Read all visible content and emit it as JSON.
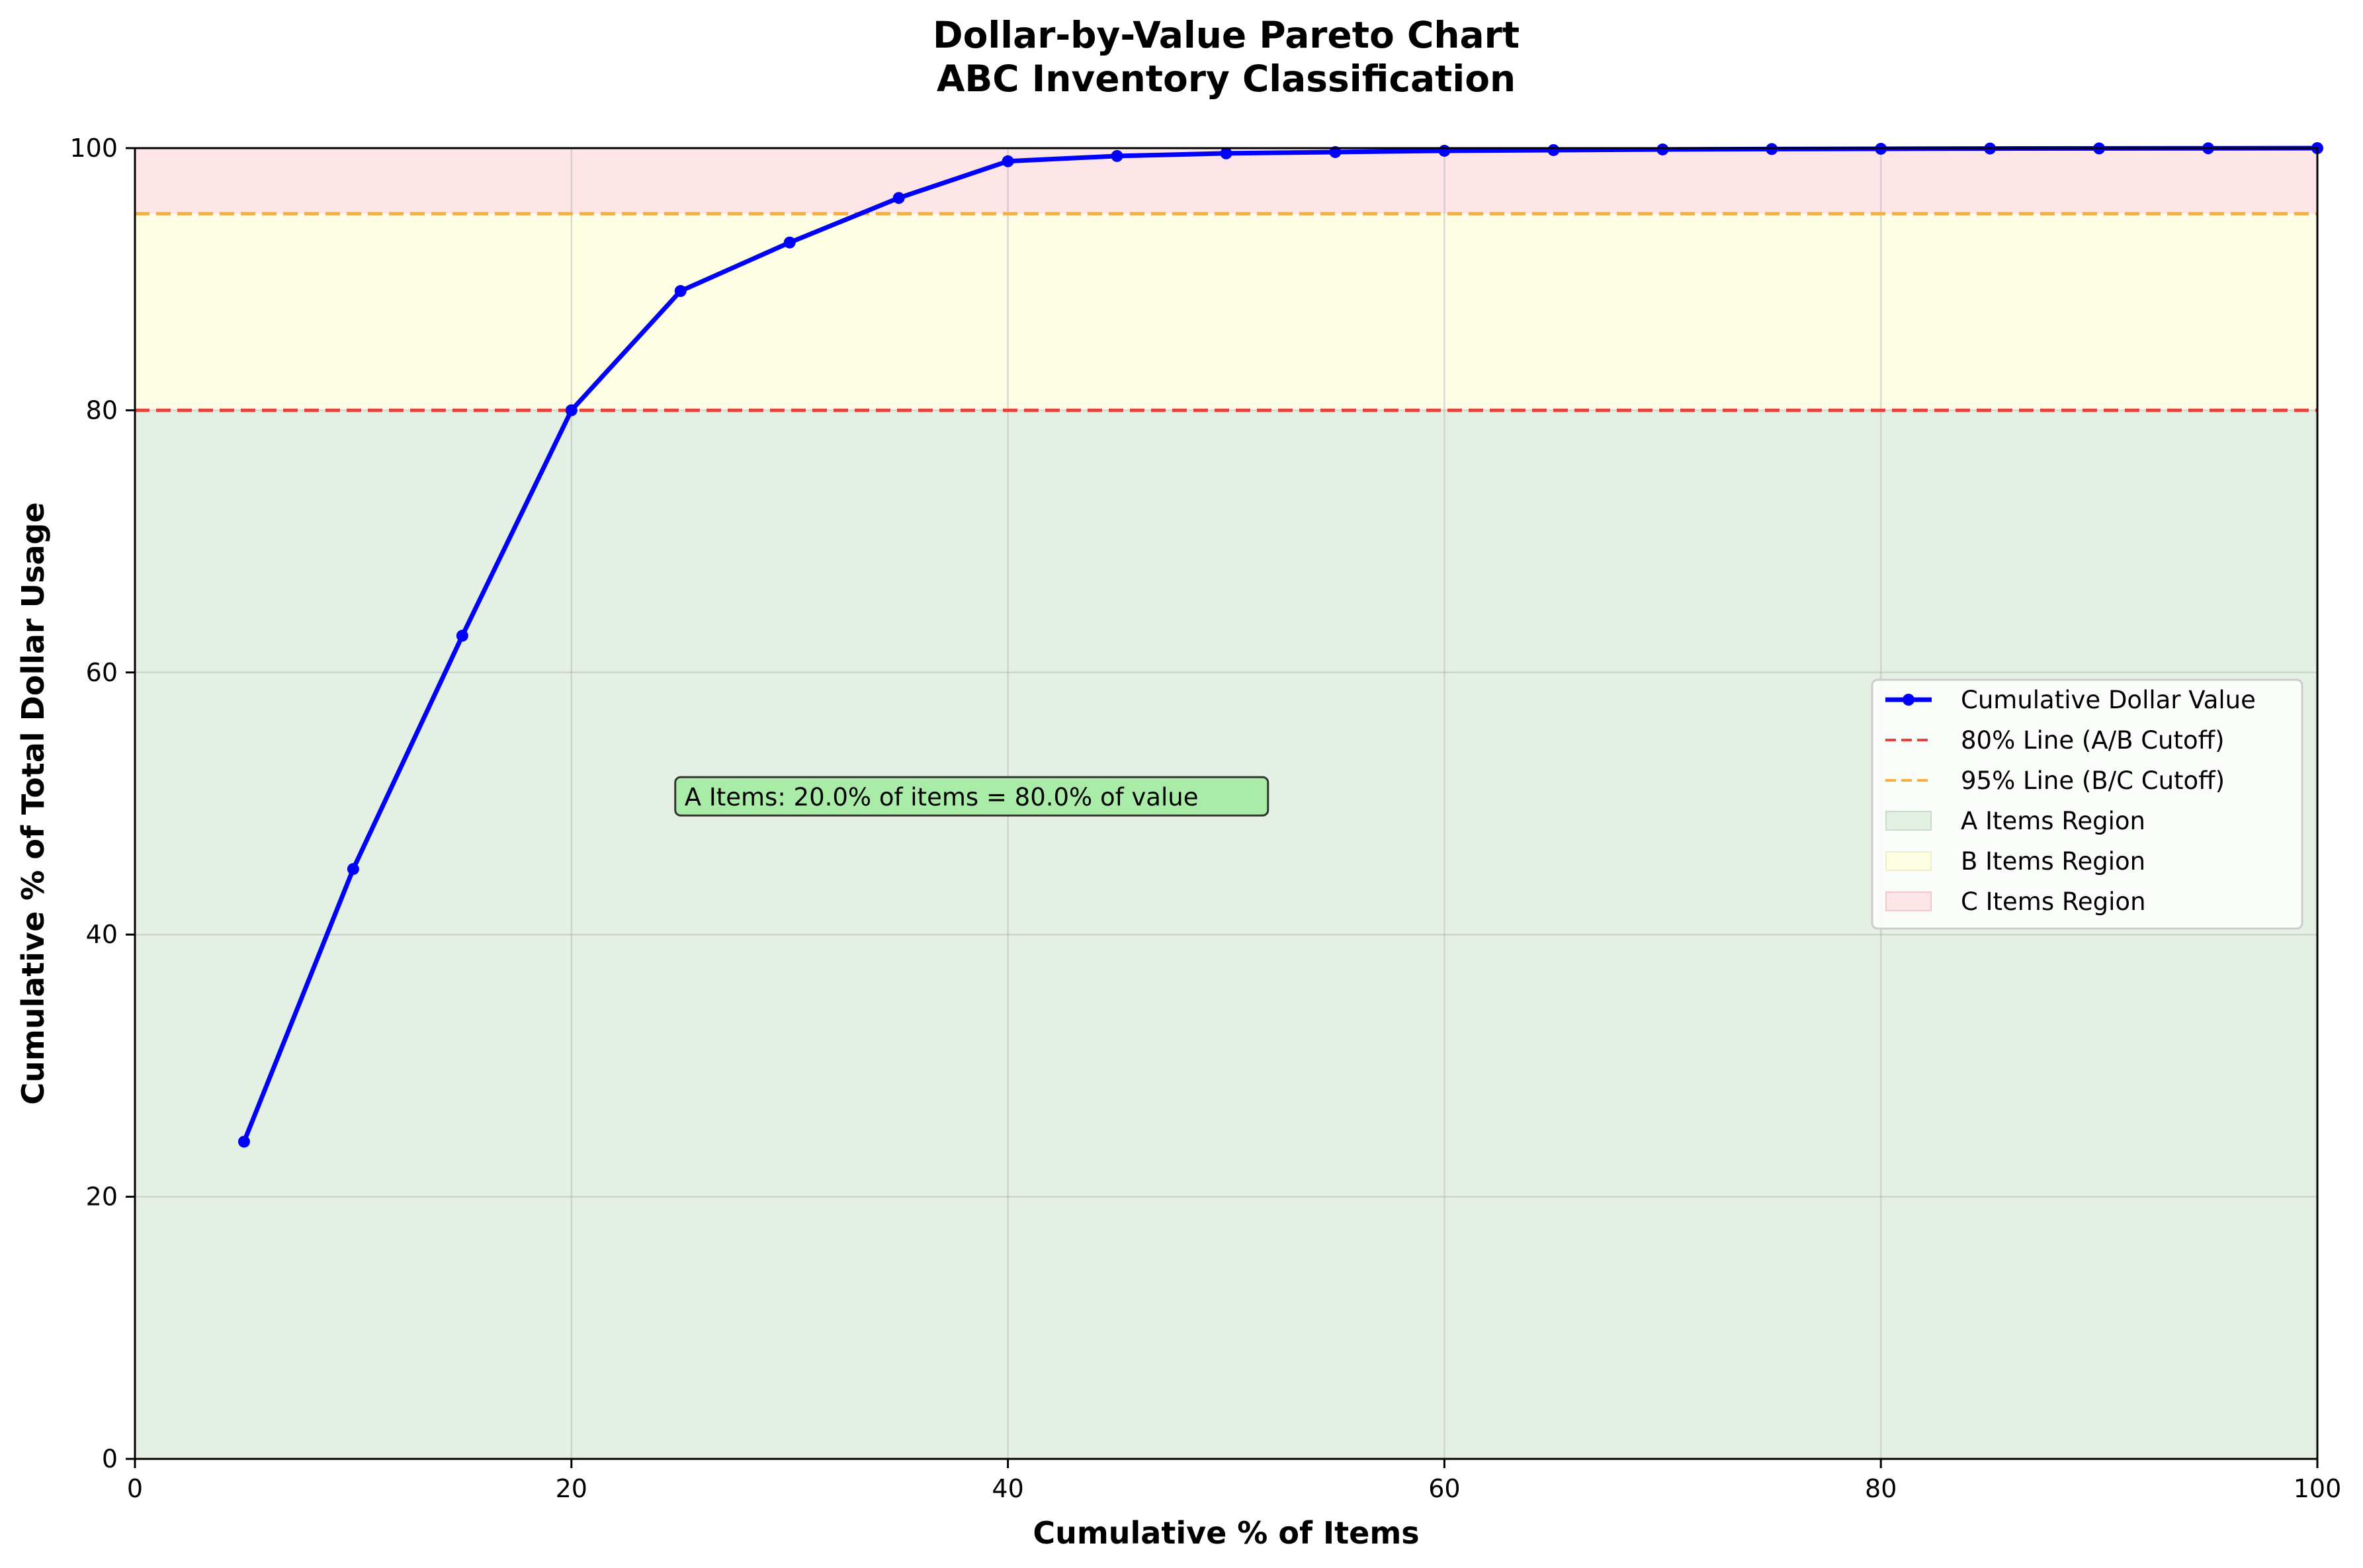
{
  "chart_data": {
    "type": "line",
    "title": "Dollar-by-Value Pareto Chart",
    "subtitle": "ABC Inventory Classification",
    "xlabel": "Cumulative % of Items",
    "ylabel": "Cumulative % of Total Dollar Usage",
    "xlim": [
      0,
      100
    ],
    "ylim": [
      0,
      100
    ],
    "x_ticks": [
      0,
      20,
      40,
      60,
      80,
      100
    ],
    "y_ticks": [
      0,
      20,
      40,
      60,
      80,
      100
    ],
    "grid": true,
    "legend_position": "center-right",
    "series": [
      {
        "name": "Cumulative Dollar Value",
        "color": "#0000ff",
        "x": [
          5,
          10,
          15,
          20,
          25,
          30,
          35,
          40,
          45,
          50,
          55,
          60,
          65,
          70,
          75,
          80,
          85,
          90,
          95,
          100
        ],
        "values": [
          24.2,
          45.0,
          62.8,
          80.0,
          89.1,
          92.8,
          96.2,
          99.0,
          99.4,
          99.6,
          99.7,
          99.8,
          99.85,
          99.9,
          99.93,
          99.95,
          99.97,
          99.98,
          99.99,
          100.0
        ]
      }
    ],
    "reference_lines": [
      {
        "name": "80% Line (A/B Cutoff)",
        "y": 80,
        "color": "#e8403a",
        "style": "dashed"
      },
      {
        "name": "95% Line (B/C Cutoff)",
        "y": 95,
        "color": "#f5b03a",
        "style": "dashed"
      }
    ],
    "regions": [
      {
        "name": "A Items Region",
        "y0": 0,
        "y1": 80,
        "color": "#e5f0e5"
      },
      {
        "name": "B Items Region",
        "y0": 80,
        "y1": 95,
        "color": "#fefee5"
      },
      {
        "name": "C Items Region",
        "y0": 95,
        "y1": 100,
        "color": "#fee5e8"
      }
    ],
    "annotation": {
      "text": "A Items: 20.0% of items = 80.0% of value",
      "x": 25,
      "y": 50.5,
      "background": "#a8eca8"
    }
  }
}
